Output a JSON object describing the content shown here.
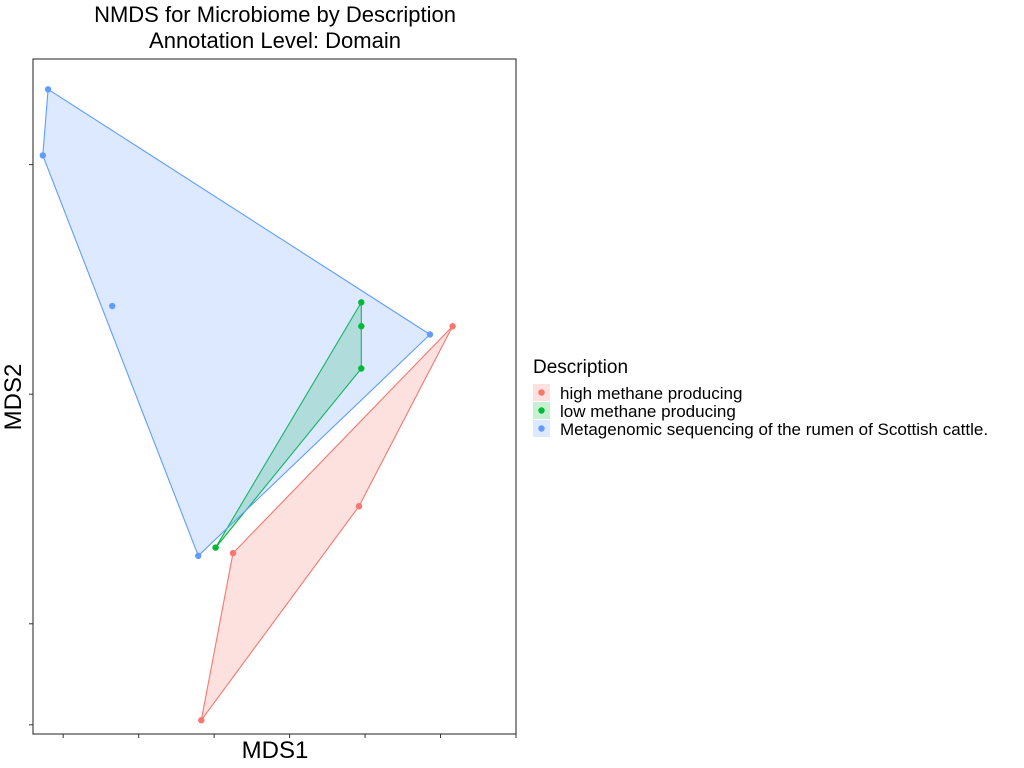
{
  "chart_data": {
    "type": "scatter",
    "title": [
      "NMDS for Microbiome by Description",
      "Annotation Level: Domain"
    ],
    "xlabel": "MDS1",
    "ylabel": "MDS2",
    "x_ticks_labelled": false,
    "y_ticks_labelled": false,
    "grid": false,
    "hulls": true,
    "xlim": [
      -0.39,
      0.25
    ],
    "ylim": [
      -0.37,
      0.365
    ],
    "legend": {
      "title": "Description",
      "placement": "right"
    },
    "series": [
      {
        "name": "high methane producing",
        "color": "#F8766D",
        "points": [
          {
            "x": -0.167,
            "y": -0.355
          },
          {
            "x": -0.125,
            "y": -0.173
          },
          {
            "x": 0.042,
            "y": -0.122
          },
          {
            "x": 0.166,
            "y": 0.074
          }
        ],
        "hull": [
          0,
          1,
          3,
          2
        ]
      },
      {
        "name": "low methane producing",
        "color": "#00BA38",
        "points": [
          {
            "x": -0.148,
            "y": -0.167
          },
          {
            "x": 0.045,
            "y": 0.028
          },
          {
            "x": 0.045,
            "y": 0.074
          },
          {
            "x": 0.045,
            "y": 0.1
          }
        ],
        "hull": [
          0,
          1,
          2,
          3
        ]
      },
      {
        "name": "Metagenomic sequencing of the rumen of Scottish cattle.",
        "color": "#619CFF",
        "points": [
          {
            "x": -0.37,
            "y": 0.332
          },
          {
            "x": -0.377,
            "y": 0.26
          },
          {
            "x": -0.285,
            "y": 0.096
          },
          {
            "x": -0.171,
            "y": -0.176
          },
          {
            "x": 0.136,
            "y": 0.065
          }
        ],
        "hull": [
          0,
          1,
          3,
          4
        ]
      }
    ]
  }
}
